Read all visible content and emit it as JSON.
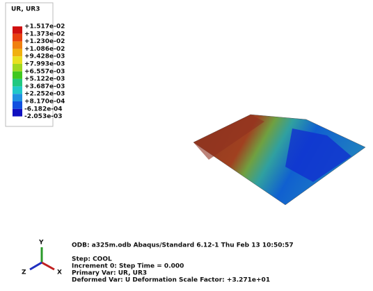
{
  "legend": {
    "title": "UR, UR3",
    "labels": [
      "+1.517e-02",
      "+1.373e-02",
      "+1.230e-02",
      "+1.086e-02",
      "+9.428e-03",
      "+7.993e-03",
      "+6.557e-03",
      "+5.122e-03",
      "+3.687e-03",
      "+2.252e-03",
      "+8.170e-04",
      "-6.182e-04",
      "-2.053e-03"
    ],
    "colors": [
      "#d01010",
      "#e84010",
      "#f08010",
      "#f0b010",
      "#e8e020",
      "#a0d820",
      "#40c820",
      "#20c880",
      "#20c8c8",
      "#2090e0",
      "#1050e0",
      "#1010c0"
    ]
  },
  "triad": {
    "y": "Y",
    "x": "X",
    "z": "Z"
  },
  "info": {
    "line1": "ODB: a325m.odb   Abaqus/Standard 6.12-1   Thu Feb 13 10:50:57",
    "step": "Step: COOL",
    "increment": "Increment     0: Step Time =    0.000",
    "primary": "Primary Var: UR, UR3",
    "deformed": "Deformed Var: U   Deformation Scale Factor: +3.271e+01"
  }
}
